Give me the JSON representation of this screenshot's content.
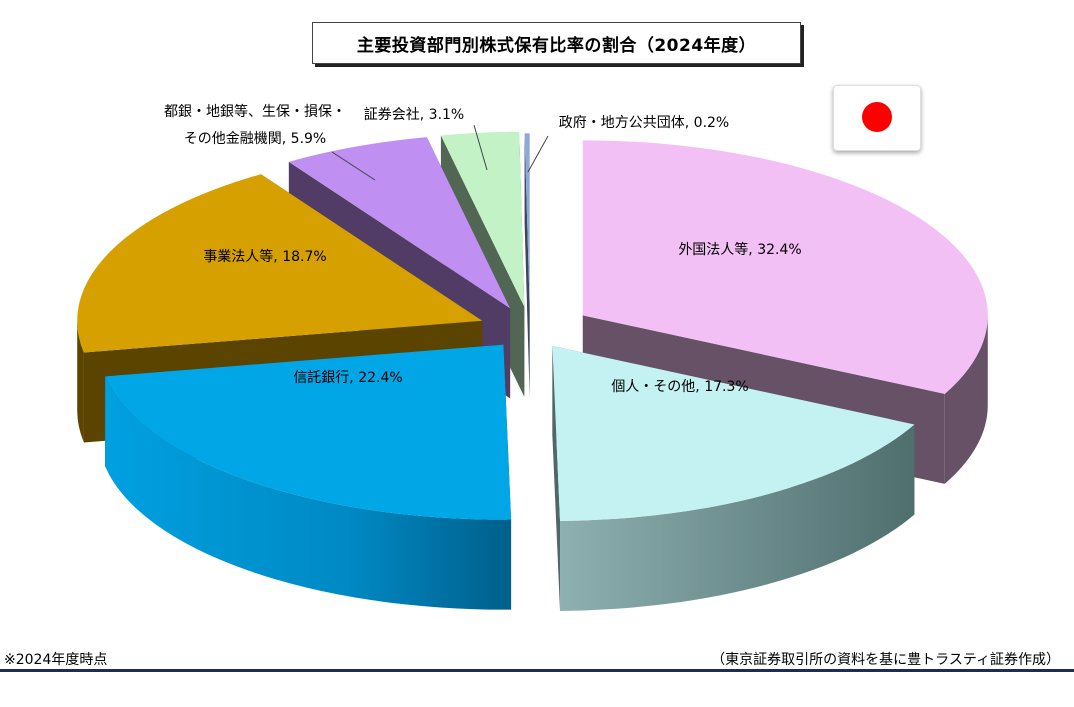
{
  "title": "主要投資部門別株式保有比率の割合（2024年度）",
  "flag_icon": "japan-flag-icon",
  "chart_data": {
    "type": "pie",
    "style": "3d-exploded",
    "title": "主要投資部門別株式保有比率の割合（2024年度）",
    "categories": [
      "外国法人等",
      "個人・その他",
      "信託銀行",
      "事業法人等",
      "都銀・地銀等、生保・損保・その他金融機関",
      "証券会社",
      "政府・地方公共団体"
    ],
    "values": [
      32.4,
      17.3,
      22.4,
      18.7,
      5.9,
      3.1,
      0.2
    ],
    "unit": "%",
    "slices": [
      {
        "label": [
          "外国法人等, 32.4%"
        ],
        "color": "#f2c0f4"
      },
      {
        "label": [
          "個人・その他, 17.3%"
        ],
        "color": "#c4f2f2"
      },
      {
        "label": [
          "信託銀行, 22.4%"
        ],
        "color": "#00a6e6"
      },
      {
        "label": [
          "事業法人等, 18.7%"
        ],
        "color": "#d6a100"
      },
      {
        "label": [
          "都銀・地銀等、生保・損保・",
          "その他金融機関, 5.9%"
        ],
        "color": "#c08ff2"
      },
      {
        "label": [
          "証券会社, 3.1%"
        ],
        "color": "#c2f2c6"
      },
      {
        "label": [
          "政府・地方公共団体, 0.2%"
        ],
        "color": "#8fa8d8"
      }
    ]
  },
  "footnote": "※2024年度時点",
  "source": "（東京証券取引所の資料を基に豊トラスティ証券作成）"
}
